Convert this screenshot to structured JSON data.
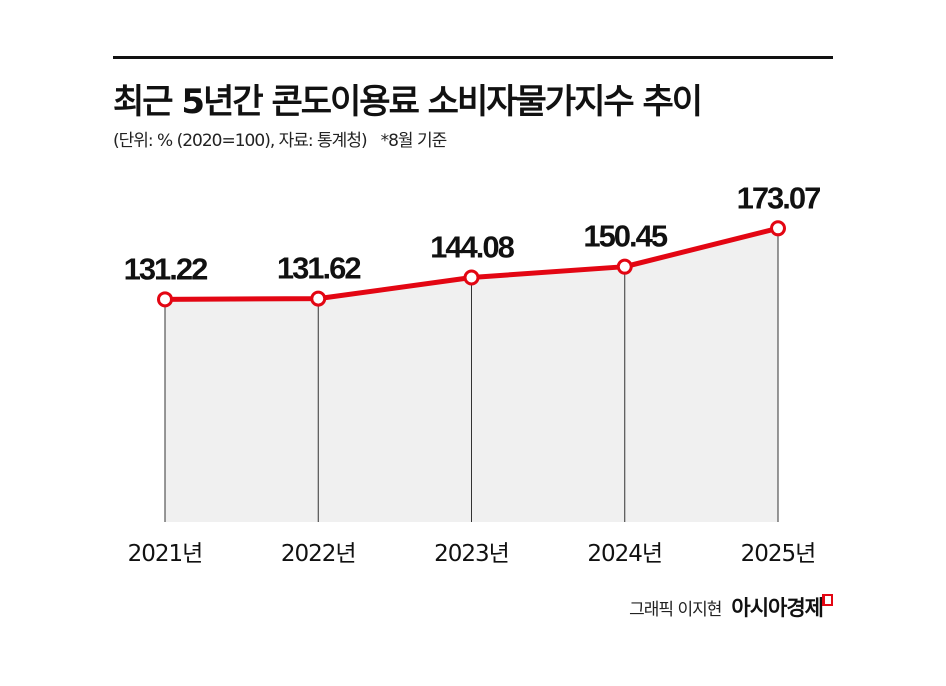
{
  "header": {
    "title": "최근 5년간 콘도이용료 소비자물가지수 추이",
    "subtitle": "(단위: % (2020=100), 자료: 통계청)",
    "note": "*8월 기준"
  },
  "footer": {
    "credit": "그래픽 이지현",
    "logo": "아시아경제"
  },
  "colors": {
    "line": "#e30613",
    "fill": "#f0f0f0",
    "drop": "#333333"
  },
  "chart_data": {
    "type": "line",
    "title": "최근 5년간 콘도이용료 소비자물가지수 추이",
    "xlabel": "",
    "ylabel": "",
    "categories": [
      "2021년",
      "2022년",
      "2023년",
      "2024년",
      "2025년"
    ],
    "values": [
      131.22,
      131.62,
      144.08,
      150.45,
      173.07
    ],
    "labels": [
      "131.22",
      "131.62",
      "144.08",
      "150.45",
      "173.07"
    ],
    "ylim": [
      0,
      180
    ],
    "grid": false
  }
}
